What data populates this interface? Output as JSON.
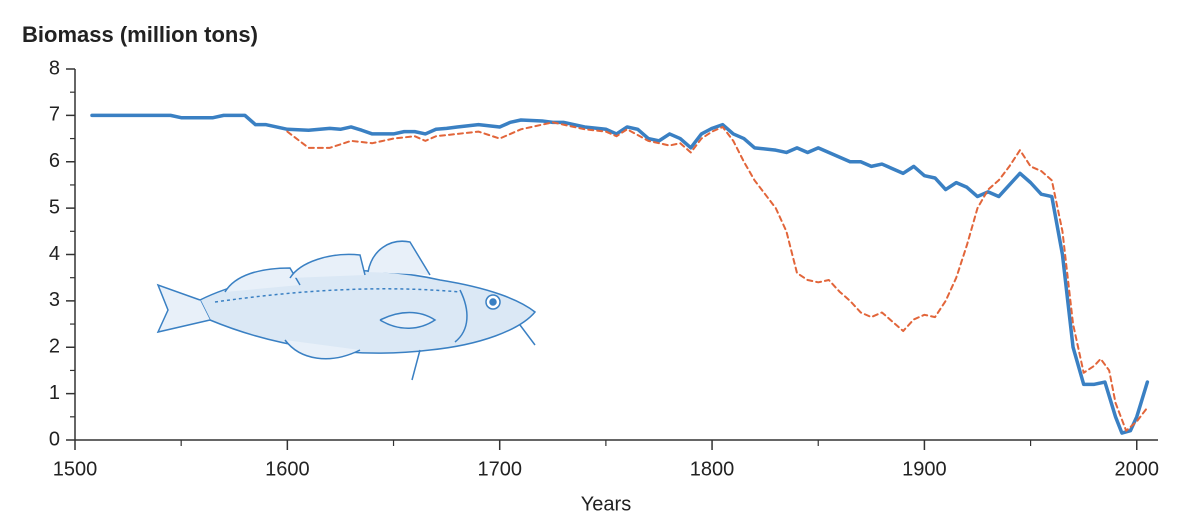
{
  "chart_data": {
    "type": "line",
    "title": "Biomass (million tons)",
    "x_label": "Years",
    "xlim": [
      1500,
      2010
    ],
    "xticks": [
      1500,
      1600,
      1700,
      1800,
      1900,
      2000
    ],
    "x_minor_ticks": [
      1550,
      1650,
      1750,
      1850,
      1950
    ],
    "ylim": [
      0,
      8
    ],
    "yticks": [
      0,
      1,
      2,
      3,
      4,
      5,
      6,
      7,
      8
    ],
    "y_minor_ticks": [
      0.5,
      1.5,
      2.5,
      3.5,
      4.5,
      5.5,
      6.5,
      7.5
    ],
    "grid": false,
    "series": [
      {
        "color": "#3a80c3",
        "dashed": false,
        "x": [
          1508,
          1545,
          1550,
          1555,
          1560,
          1565,
          1570,
          1580,
          1585,
          1590,
          1600,
          1610,
          1620,
          1625,
          1630,
          1635,
          1640,
          1650,
          1655,
          1660,
          1665,
          1670,
          1675,
          1680,
          1690,
          1700,
          1705,
          1710,
          1720,
          1725,
          1730,
          1740,
          1750,
          1755,
          1760,
          1765,
          1770,
          1775,
          1780,
          1785,
          1790,
          1795,
          1800,
          1805,
          1810,
          1815,
          1820,
          1830,
          1835,
          1840,
          1845,
          1850,
          1855,
          1860,
          1865,
          1870,
          1875,
          1880,
          1885,
          1890,
          1895,
          1900,
          1905,
          1910,
          1915,
          1920,
          1925,
          1930,
          1935,
          1940,
          1945,
          1950,
          1955,
          1960,
          1965,
          1970,
          1975,
          1980,
          1985,
          1990,
          1993,
          1997,
          2000,
          2005
        ],
        "values": [
          7.0,
          7.0,
          6.95,
          6.95,
          6.95,
          6.95,
          7.0,
          7.0,
          6.8,
          6.8,
          6.7,
          6.68,
          6.72,
          6.7,
          6.75,
          6.68,
          6.6,
          6.6,
          6.65,
          6.65,
          6.6,
          6.7,
          6.72,
          6.75,
          6.8,
          6.75,
          6.85,
          6.9,
          6.88,
          6.85,
          6.85,
          6.75,
          6.7,
          6.6,
          6.75,
          6.7,
          6.5,
          6.45,
          6.6,
          6.5,
          6.3,
          6.6,
          6.72,
          6.8,
          6.6,
          6.5,
          6.3,
          6.25,
          6.2,
          6.3,
          6.2,
          6.3,
          6.2,
          6.1,
          6.0,
          6.0,
          5.9,
          5.95,
          5.85,
          5.75,
          5.9,
          5.7,
          5.65,
          5.4,
          5.55,
          5.45,
          5.25,
          5.35,
          5.25,
          5.5,
          5.75,
          5.55,
          5.3,
          5.25,
          4.0,
          2.0,
          1.2,
          1.2,
          1.25,
          0.5,
          0.15,
          0.2,
          0.5,
          1.25
        ]
      },
      {
        "color": "#e2653a",
        "dashed": true,
        "x": [
          1600,
          1610,
          1620,
          1630,
          1640,
          1650,
          1660,
          1665,
          1670,
          1680,
          1690,
          1700,
          1710,
          1720,
          1725,
          1730,
          1740,
          1750,
          1755,
          1760,
          1770,
          1780,
          1785,
          1790,
          1795,
          1800,
          1805,
          1810,
          1815,
          1820,
          1830,
          1835,
          1840,
          1845,
          1850,
          1855,
          1860,
          1865,
          1870,
          1875,
          1880,
          1885,
          1890,
          1895,
          1900,
          1905,
          1910,
          1915,
          1920,
          1925,
          1930,
          1935,
          1940,
          1945,
          1950,
          1955,
          1960,
          1965,
          1970,
          1975,
          1980,
          1983,
          1987,
          1990,
          1995,
          2000,
          2005
        ],
        "values": [
          6.65,
          6.3,
          6.3,
          6.45,
          6.4,
          6.5,
          6.55,
          6.45,
          6.55,
          6.6,
          6.65,
          6.5,
          6.7,
          6.8,
          6.85,
          6.8,
          6.7,
          6.65,
          6.55,
          6.7,
          6.45,
          6.35,
          6.4,
          6.2,
          6.5,
          6.65,
          6.75,
          6.45,
          6.0,
          5.6,
          5.0,
          4.5,
          3.6,
          3.45,
          3.4,
          3.45,
          3.2,
          3.0,
          2.75,
          2.65,
          2.75,
          2.55,
          2.35,
          2.6,
          2.7,
          2.65,
          3.0,
          3.5,
          4.2,
          5.0,
          5.4,
          5.6,
          5.9,
          6.25,
          5.9,
          5.8,
          5.6,
          4.5,
          2.5,
          1.45,
          1.6,
          1.75,
          1.5,
          0.8,
          0.2,
          0.4,
          0.7
        ]
      }
    ]
  }
}
